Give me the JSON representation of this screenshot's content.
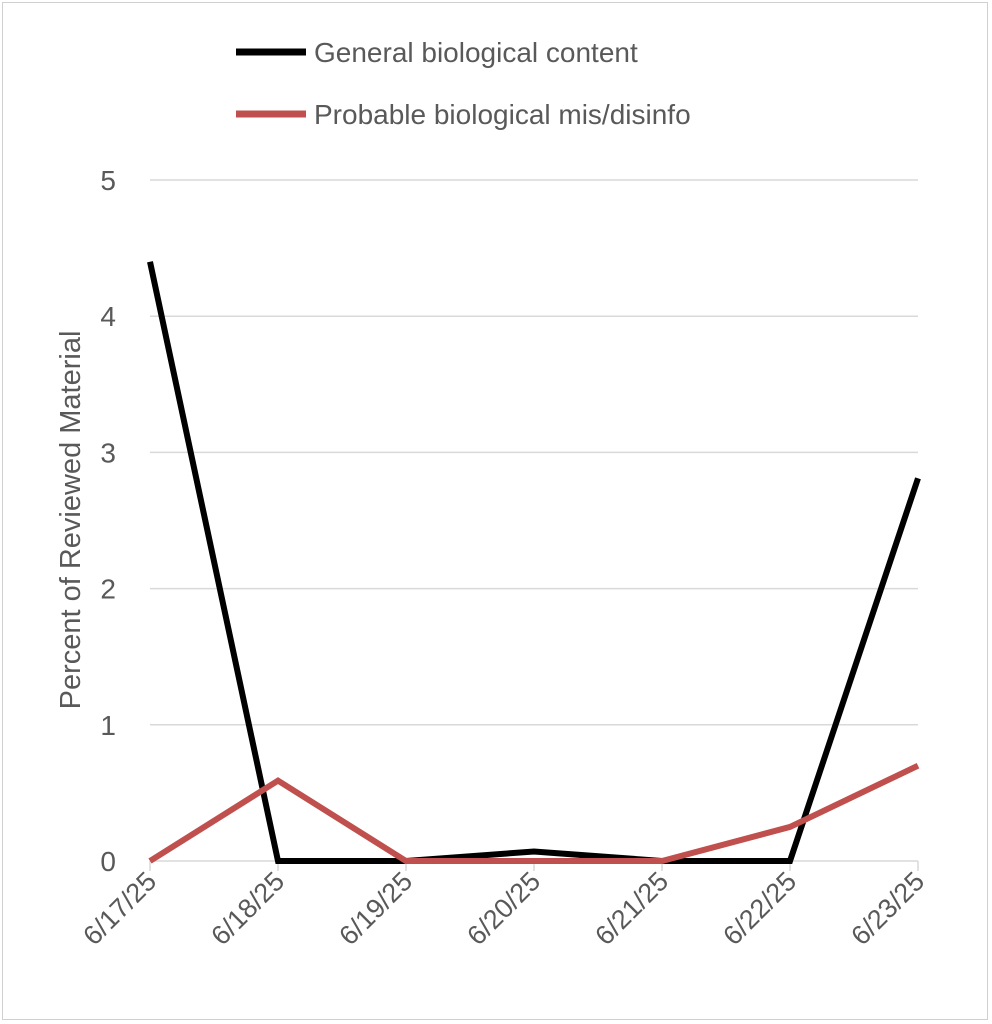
{
  "chart_data": {
    "type": "line",
    "title": "",
    "xlabel": "",
    "ylabel": "Percent of Reviewed Material",
    "categories": [
      "6/17/25",
      "6/18/25",
      "6/19/25",
      "6/20/25",
      "6/21/25",
      "6/22/25",
      "6/23/25"
    ],
    "ylim": [
      0,
      5
    ],
    "yticks": [
      "0",
      "1",
      "2",
      "3",
      "4",
      "5"
    ],
    "grid": true,
    "legend_position": "top",
    "series": [
      {
        "name": "General biological content",
        "color": "#000000",
        "values": [
          4.4,
          0,
          0,
          0.07,
          0,
          0,
          2.81
        ]
      },
      {
        "name": "Probable biological mis/disinfo",
        "color": "#c0504d",
        "values": [
          0,
          0.59,
          0,
          0,
          0,
          0.25,
          0.7
        ]
      }
    ]
  }
}
